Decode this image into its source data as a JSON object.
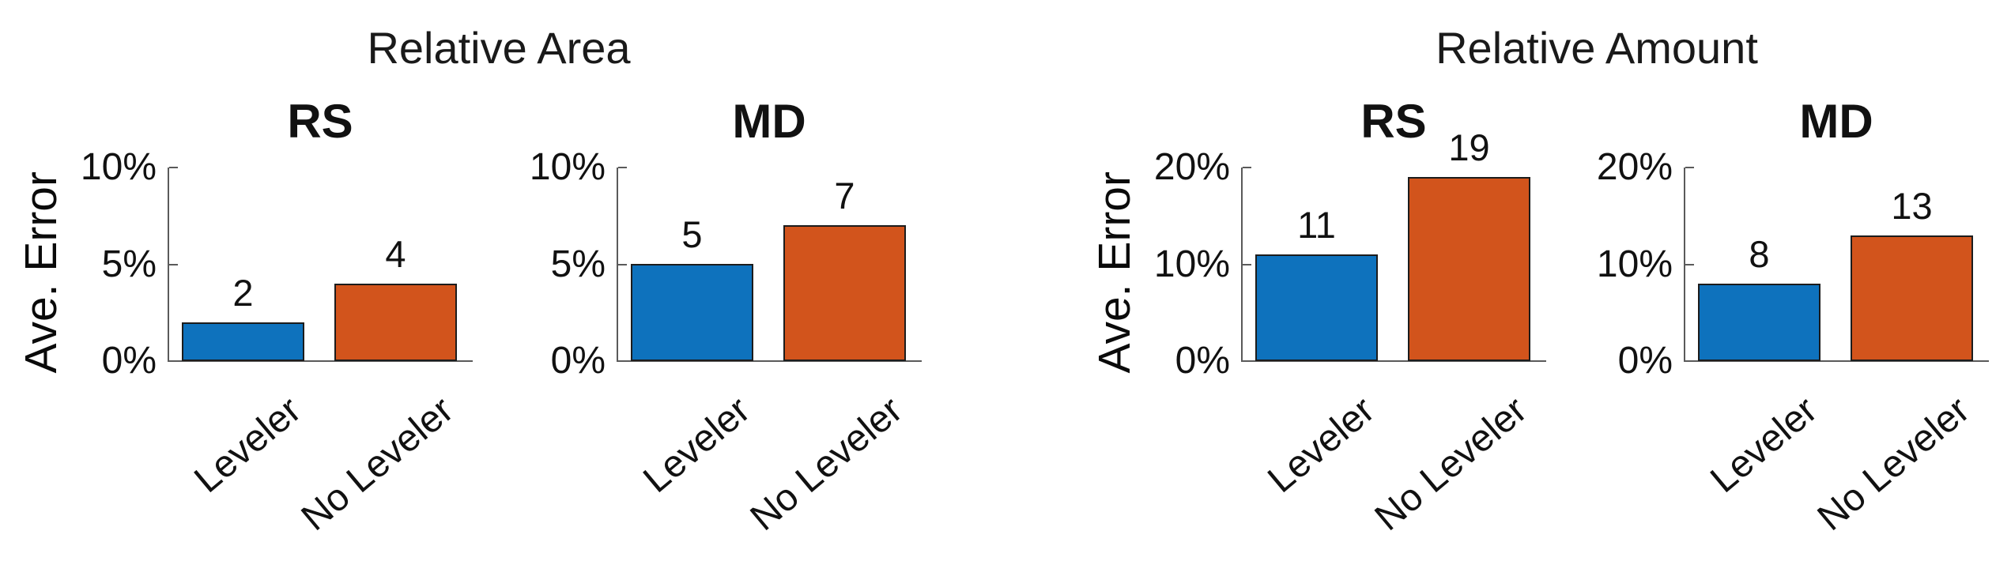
{
  "figure": {
    "group_titles": [
      "Relative Area",
      "Relative Amount"
    ],
    "colors": {
      "leveler_blue": "#0e72bd",
      "no_leveler_orange": "#d2541c",
      "axis_gray": "#5a5a5a",
      "text_black": "#000000",
      "background": "#ffffff"
    }
  },
  "chart_data": [
    {
      "type": "bar",
      "group": "Relative Area",
      "title": "RS",
      "ylabel": "Ave. Error",
      "categories": [
        "Leveler",
        "No Leveler"
      ],
      "values": [
        2,
        4
      ],
      "bar_value_labels": [
        "2",
        "4"
      ],
      "yticks": [
        {
          "value": 0,
          "label": "0%"
        },
        {
          "value": 5,
          "label": "5%"
        },
        {
          "value": 10,
          "label": "10%"
        }
      ],
      "ylim": [
        0,
        10
      ],
      "series_colors": [
        "#0e72bd",
        "#d2541c"
      ],
      "xtick_rotation_deg": 40,
      "grid": false,
      "legend": null
    },
    {
      "type": "bar",
      "group": "Relative Area",
      "title": "MD",
      "ylabel": null,
      "categories": [
        "Leveler",
        "No Leveler"
      ],
      "values": [
        5,
        7
      ],
      "bar_value_labels": [
        "5",
        "7"
      ],
      "yticks": [
        {
          "value": 0,
          "label": "0%"
        },
        {
          "value": 5,
          "label": "5%"
        },
        {
          "value": 10,
          "label": "10%"
        }
      ],
      "ylim": [
        0,
        10
      ],
      "series_colors": [
        "#0e72bd",
        "#d2541c"
      ],
      "xtick_rotation_deg": 40,
      "grid": false,
      "legend": null
    },
    {
      "type": "bar",
      "group": "Relative Amount",
      "title": "RS",
      "ylabel": "Ave. Error",
      "categories": [
        "Leveler",
        "No Leveler"
      ],
      "values": [
        11,
        19
      ],
      "bar_value_labels": [
        "11",
        "19"
      ],
      "yticks": [
        {
          "value": 0,
          "label": "0%"
        },
        {
          "value": 10,
          "label": "10%"
        },
        {
          "value": 20,
          "label": "20%"
        }
      ],
      "ylim": [
        0,
        20
      ],
      "series_colors": [
        "#0e72bd",
        "#d2541c"
      ],
      "xtick_rotation_deg": 40,
      "grid": false,
      "legend": null
    },
    {
      "type": "bar",
      "group": "Relative Amount",
      "title": "MD",
      "ylabel": null,
      "categories": [
        "Leveler",
        "No Leveler"
      ],
      "values": [
        8,
        13
      ],
      "bar_value_labels": [
        "8",
        "13"
      ],
      "yticks": [
        {
          "value": 0,
          "label": "0%"
        },
        {
          "value": 10,
          "label": "10%"
        },
        {
          "value": 20,
          "label": "20%"
        }
      ],
      "ylim": [
        0,
        20
      ],
      "series_colors": [
        "#0e72bd",
        "#d2541c"
      ],
      "xtick_rotation_deg": 40,
      "grid": false,
      "legend": null
    }
  ]
}
